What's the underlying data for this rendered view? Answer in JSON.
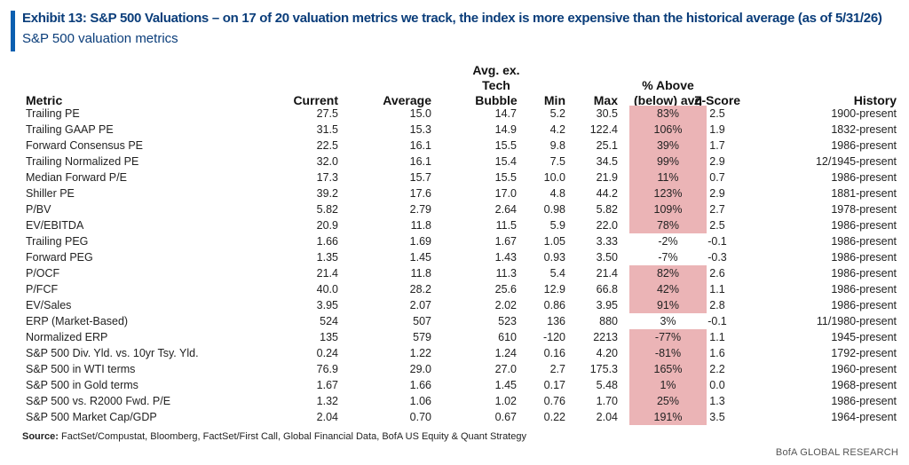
{
  "header": {
    "title": "Exhibit 13: S&P 500 Valuations – on 17 of 20 valuation metrics we track, the index is more expensive than the historical average (as of 5/31/26)",
    "subtitle": "S&P 500 valuation metrics"
  },
  "columns": {
    "metric": "Metric",
    "current": "Current",
    "average": "Average",
    "avg_ex_line1": "Avg. ex.",
    "avg_ex_line2": "Tech",
    "avg_ex_line3": "Bubble",
    "min": "Min",
    "max": "Max",
    "pct_line1": "% Above",
    "pct_line2": "(below) avg",
    "zscore": "Z-Score",
    "history": "History"
  },
  "highlight_color": "#ebb4b6",
  "rows": [
    {
      "metric": "Trailing PE",
      "current": "27.5",
      "average": "15.0",
      "avg_ex": "14.7",
      "min": "5.2",
      "max": "30.5",
      "pct": "83%",
      "z": "2.5",
      "history": "1900-present",
      "highlight": true
    },
    {
      "metric": "Trailing GAAP PE",
      "current": "31.5",
      "average": "15.3",
      "avg_ex": "14.9",
      "min": "4.2",
      "max": "122.4",
      "pct": "106%",
      "z": "1.9",
      "history": "1832-present",
      "highlight": true
    },
    {
      "metric": "Forward Consensus PE",
      "current": "22.5",
      "average": "16.1",
      "avg_ex": "15.5",
      "min": "9.8",
      "max": "25.1",
      "pct": "39%",
      "z": "1.7",
      "history": "1986-present",
      "highlight": true
    },
    {
      "metric": "Trailing Normalized PE",
      "current": "32.0",
      "average": "16.1",
      "avg_ex": "15.4",
      "min": "7.5",
      "max": "34.5",
      "pct": "99%",
      "z": "2.9",
      "history": "12/1945-present",
      "highlight": true
    },
    {
      "metric": "Median Forward P/E",
      "current": "17.3",
      "average": "15.7",
      "avg_ex": "15.5",
      "min": "10.0",
      "max": "21.9",
      "pct": "11%",
      "z": "0.7",
      "history": "1986-present",
      "highlight": true
    },
    {
      "metric": "Shiller PE",
      "current": "39.2",
      "average": "17.6",
      "avg_ex": "17.0",
      "min": "4.8",
      "max": "44.2",
      "pct": "123%",
      "z": "2.9",
      "history": "1881-present",
      "highlight": true
    },
    {
      "metric": "P/BV",
      "current": "5.82",
      "average": "2.79",
      "avg_ex": "2.64",
      "min": "0.98",
      "max": "5.82",
      "pct": "109%",
      "z": "2.7",
      "history": "1978-present",
      "highlight": true
    },
    {
      "metric": "EV/EBITDA",
      "current": "20.9",
      "average": "11.8",
      "avg_ex": "11.5",
      "min": "5.9",
      "max": "22.0",
      "pct": "78%",
      "z": "2.5",
      "history": "1986-present",
      "highlight": true
    },
    {
      "metric": "Trailing PEG",
      "current": "1.66",
      "average": "1.69",
      "avg_ex": "1.67",
      "min": "1.05",
      "max": "3.33",
      "pct": "-2%",
      "z": "-0.1",
      "history": "1986-present",
      "highlight": false
    },
    {
      "metric": "Forward PEG",
      "current": "1.35",
      "average": "1.45",
      "avg_ex": "1.43",
      "min": "0.93",
      "max": "3.50",
      "pct": "-7%",
      "z": "-0.3",
      "history": "1986-present",
      "highlight": false
    },
    {
      "metric": "P/OCF",
      "current": "21.4",
      "average": "11.8",
      "avg_ex": "11.3",
      "min": "5.4",
      "max": "21.4",
      "pct": "82%",
      "z": "2.6",
      "history": "1986-present",
      "highlight": true
    },
    {
      "metric": "P/FCF",
      "current": "40.0",
      "average": "28.2",
      "avg_ex": "25.6",
      "min": "12.9",
      "max": "66.8",
      "pct": "42%",
      "z": "1.1",
      "history": "1986-present",
      "highlight": true
    },
    {
      "metric": "EV/Sales",
      "current": "3.95",
      "average": "2.07",
      "avg_ex": "2.02",
      "min": "0.86",
      "max": "3.95",
      "pct": "91%",
      "z": "2.8",
      "history": "1986-present",
      "highlight": true
    },
    {
      "metric": "ERP (Market-Based)",
      "current": "524",
      "average": "507",
      "avg_ex": "523",
      "min": "136",
      "max": "880",
      "pct": "3%",
      "z": "-0.1",
      "history": "11/1980-present",
      "highlight": false
    },
    {
      "metric": "Normalized ERP",
      "current": "135",
      "average": "579",
      "avg_ex": "610",
      "min": "-120",
      "max": "2213",
      "pct": "-77%",
      "z": "1.1",
      "history": "1945-present",
      "highlight": true
    },
    {
      "metric": "S&P 500 Div. Yld. vs. 10yr Tsy. Yld.",
      "current": "0.24",
      "average": "1.22",
      "avg_ex": "1.24",
      "min": "0.16",
      "max": "4.20",
      "pct": "-81%",
      "z": "1.6",
      "history": "1792-present",
      "highlight": true
    },
    {
      "metric": "S&P 500 in WTI terms",
      "current": "76.9",
      "average": "29.0",
      "avg_ex": "27.0",
      "min": "2.7",
      "max": "175.3",
      "pct": "165%",
      "z": "2.2",
      "history": "1960-present",
      "highlight": true
    },
    {
      "metric": "S&P 500 in Gold terms",
      "current": "1.67",
      "average": "1.66",
      "avg_ex": "1.45",
      "min": "0.17",
      "max": "5.48",
      "pct": "1%",
      "z": "0.0",
      "history": "1968-present",
      "highlight": true
    },
    {
      "metric": "S&P 500 vs. R2000 Fwd. P/E",
      "current": "1.32",
      "average": "1.06",
      "avg_ex": "1.02",
      "min": "0.76",
      "max": "1.70",
      "pct": "25%",
      "z": "1.3",
      "history": "1986-present",
      "highlight": true
    },
    {
      "metric": "S&P 500 Market Cap/GDP",
      "current": "2.04",
      "average": "0.70",
      "avg_ex": "0.67",
      "min": "0.22",
      "max": "2.04",
      "pct": "191%",
      "z": "3.5",
      "history": "1964-present",
      "highlight": true
    }
  ],
  "footer": {
    "source_label": "Source:",
    "source_text": " FactSet/Compustat, Bloomberg, FactSet/First Call, Global Financial Data, BofA US Equity & Quant Strategy",
    "brand": "BofA GLOBAL RESEARCH"
  }
}
